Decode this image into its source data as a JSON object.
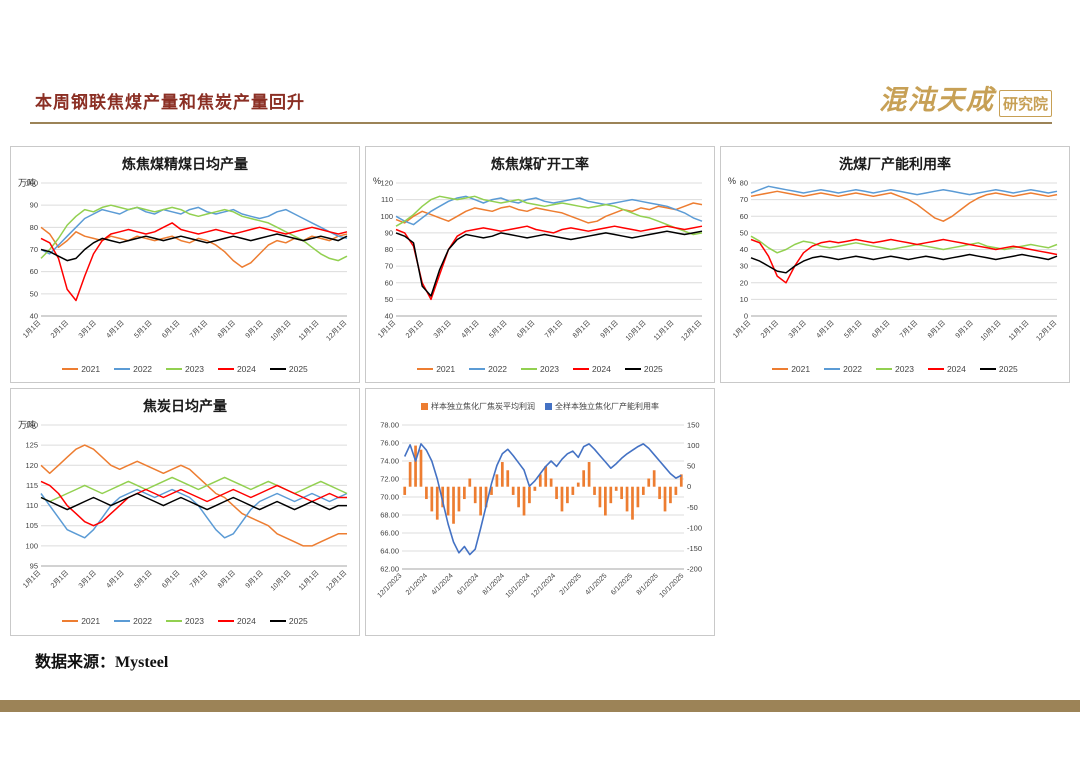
{
  "header": {
    "title": "本周钢联焦煤产量和焦炭产量回升",
    "logo_main": "混沌天成",
    "logo_seal": "研究院"
  },
  "footer": {
    "source_label": "数据来源：",
    "source_value": "Mysteel"
  },
  "colors": {
    "accent_gold": "#9c8357",
    "logo_gold": "#c7a055",
    "title_maroon": "#8b2f24",
    "gridline": "#dcdcdc",
    "s2021": "#ED7D31",
    "s2022": "#5B9BD5",
    "s2023": "#92D050",
    "s2024": "#FF0000",
    "s2025": "#000000",
    "combo_bar": "#ED7D31",
    "combo_line": "#4472C4"
  },
  "chart_data": [
    {
      "type": "line",
      "title": "炼焦煤精煤日均产量",
      "unit": "万吨",
      "ylim": [
        40,
        100
      ],
      "yticks": [
        40,
        50,
        60,
        70,
        80,
        90,
        100
      ],
      "grid": true,
      "legend_position": "bottom",
      "categories": [
        "1月1日",
        "2月1日",
        "3月1日",
        "4月1日",
        "5月1日",
        "6月1日",
        "7月1日",
        "8月1日",
        "9月1日",
        "10月1日",
        "11月1日",
        "12月1日"
      ],
      "series": [
        {
          "name": "2021",
          "color": "#ED7D31",
          "values": [
            80,
            77,
            71,
            74,
            78,
            76,
            75,
            74,
            76,
            75,
            74,
            76,
            75,
            74,
            75,
            76,
            74,
            73,
            75,
            74,
            72,
            69,
            65,
            62,
            64,
            68,
            72,
            74,
            73,
            75,
            74,
            76,
            75,
            74,
            76,
            77
          ]
        },
        {
          "name": "2022",
          "color": "#5B9BD5",
          "values": [
            70,
            68,
            72,
            76,
            80,
            84,
            86,
            88,
            87,
            86,
            88,
            89,
            87,
            86,
            88,
            87,
            86,
            88,
            89,
            87,
            86,
            87,
            88,
            86,
            85,
            84,
            85,
            87,
            88,
            86,
            84,
            82,
            80,
            78,
            76,
            75
          ]
        },
        {
          "name": "2023",
          "color": "#92D050",
          "values": [
            66,
            70,
            75,
            81,
            85,
            88,
            87,
            89,
            90,
            89,
            88,
            89,
            88,
            87,
            88,
            89,
            88,
            86,
            85,
            86,
            87,
            88,
            87,
            85,
            84,
            83,
            82,
            80,
            78,
            76,
            74,
            71,
            68,
            66,
            65,
            67
          ]
        },
        {
          "name": "2024",
          "color": "#FF0000",
          "values": [
            75,
            73,
            66,
            52,
            47,
            58,
            68,
            74,
            77,
            78,
            79,
            78,
            77,
            78,
            80,
            82,
            79,
            78,
            77,
            78,
            79,
            78,
            77,
            78,
            79,
            80,
            79,
            78,
            77,
            78,
            79,
            80,
            79,
            78,
            77,
            78
          ]
        },
        {
          "name": "2025",
          "color": "#000000",
          "values": [
            70,
            69,
            67,
            65,
            66,
            70,
            73,
            75,
            74,
            73,
            74,
            75,
            76,
            75,
            74,
            75,
            76,
            75,
            74,
            73,
            74,
            75,
            76,
            75,
            74,
            75,
            76,
            77,
            76,
            75,
            74,
            75,
            76,
            75,
            74,
            76
          ]
        }
      ]
    },
    {
      "type": "line",
      "title": "炼焦煤矿开工率",
      "unit": "%",
      "ylim": [
        40,
        120
      ],
      "yticks": [
        40,
        50,
        60,
        70,
        80,
        90,
        100,
        110,
        120
      ],
      "grid": true,
      "legend_position": "bottom",
      "categories": [
        "1月1日",
        "2月1日",
        "3月1日",
        "4月1日",
        "5月1日",
        "6月1日",
        "7月1日",
        "8月1日",
        "9月1日",
        "10月1日",
        "11月1日",
        "12月1日"
      ],
      "series": [
        {
          "name": "2021",
          "color": "#ED7D31",
          "values": [
            98,
            96,
            100,
            103,
            101,
            99,
            97,
            100,
            103,
            105,
            104,
            103,
            105,
            106,
            104,
            103,
            105,
            104,
            103,
            102,
            100,
            98,
            96,
            97,
            100,
            102,
            104,
            103,
            105,
            104,
            106,
            105,
            104,
            106,
            108,
            107
          ]
        },
        {
          "name": "2022",
          "color": "#5B9BD5",
          "values": [
            100,
            97,
            95,
            99,
            103,
            106,
            109,
            111,
            112,
            110,
            108,
            110,
            111,
            109,
            108,
            110,
            111,
            109,
            108,
            109,
            110,
            111,
            109,
            108,
            107,
            108,
            109,
            110,
            109,
            108,
            107,
            106,
            104,
            102,
            99,
            97
          ]
        },
        {
          "name": "2023",
          "color": "#92D050",
          "values": [
            94,
            97,
            101,
            106,
            110,
            112,
            111,
            110,
            111,
            112,
            110,
            109,
            108,
            109,
            110,
            108,
            107,
            106,
            107,
            108,
            107,
            106,
            105,
            106,
            107,
            106,
            104,
            102,
            100,
            99,
            97,
            95,
            93,
            91,
            89,
            90
          ]
        },
        {
          "name": "2024",
          "color": "#FF0000",
          "values": [
            92,
            90,
            82,
            60,
            50,
            65,
            80,
            88,
            91,
            92,
            93,
            92,
            91,
            92,
            93,
            94,
            92,
            91,
            90,
            92,
            93,
            92,
            91,
            92,
            93,
            94,
            93,
            92,
            91,
            92,
            93,
            94,
            93,
            92,
            93,
            94
          ]
        },
        {
          "name": "2025",
          "color": "#000000",
          "values": [
            90,
            88,
            84,
            58,
            52,
            68,
            80,
            86,
            89,
            88,
            87,
            88,
            90,
            89,
            88,
            87,
            88,
            89,
            88,
            87,
            86,
            87,
            88,
            89,
            90,
            89,
            88,
            87,
            88,
            89,
            90,
            91,
            90,
            89,
            90,
            91
          ]
        }
      ]
    },
    {
      "type": "line",
      "title": "洗煤厂产能利用率",
      "unit": "%",
      "ylim": [
        0,
        80
      ],
      "yticks": [
        0,
        10,
        20,
        30,
        40,
        50,
        60,
        70,
        80
      ],
      "grid": true,
      "legend_position": "bottom",
      "categories": [
        "1月1日",
        "2月1日",
        "3月1日",
        "4月1日",
        "5月1日",
        "6月1日",
        "7月1日",
        "8月1日",
        "9月1日",
        "10月1日",
        "11月1日",
        "12月1日"
      ],
      "series": [
        {
          "name": "2021",
          "color": "#ED7D31",
          "values": [
            72,
            73,
            74,
            75,
            74,
            73,
            72,
            73,
            74,
            73,
            72,
            73,
            74,
            73,
            72,
            73,
            74,
            72,
            70,
            67,
            63,
            59,
            57,
            60,
            64,
            68,
            71,
            73,
            74,
            73,
            72,
            73,
            74,
            73,
            72,
            73
          ]
        },
        {
          "name": "2022",
          "color": "#5B9BD5",
          "values": [
            74,
            76,
            78,
            77,
            76,
            75,
            74,
            75,
            76,
            75,
            74,
            75,
            76,
            75,
            74,
            75,
            76,
            75,
            74,
            73,
            74,
            75,
            76,
            75,
            74,
            73,
            74,
            75,
            76,
            75,
            74,
            75,
            76,
            75,
            74,
            75
          ]
        },
        {
          "name": "2023",
          "color": "#92D050",
          "values": [
            48,
            45,
            41,
            38,
            40,
            43,
            45,
            44,
            42,
            41,
            42,
            43,
            44,
            43,
            42,
            41,
            40,
            41,
            42,
            43,
            42,
            41,
            40,
            41,
            42,
            43,
            44,
            42,
            41,
            40,
            41,
            42,
            43,
            42,
            41,
            43
          ]
        },
        {
          "name": "2024",
          "color": "#FF0000",
          "values": [
            46,
            44,
            36,
            24,
            20,
            30,
            38,
            42,
            44,
            45,
            44,
            45,
            46,
            45,
            44,
            45,
            46,
            45,
            44,
            43,
            44,
            45,
            46,
            45,
            44,
            43,
            42,
            41,
            40,
            41,
            42,
            41,
            40,
            39,
            38,
            37
          ]
        },
        {
          "name": "2025",
          "color": "#000000",
          "values": [
            35,
            33,
            30,
            27,
            26,
            30,
            33,
            35,
            36,
            35,
            34,
            35,
            36,
            35,
            34,
            35,
            36,
            35,
            34,
            35,
            36,
            35,
            34,
            35,
            36,
            37,
            36,
            35,
            34,
            35,
            36,
            37,
            36,
            35,
            34,
            36
          ]
        }
      ]
    },
    {
      "type": "line",
      "title": "焦炭日均产量",
      "unit": "万吨",
      "ylim": [
        95,
        130
      ],
      "yticks": [
        95,
        100,
        105,
        110,
        115,
        120,
        125,
        130
      ],
      "grid": true,
      "legend_position": "bottom",
      "categories": [
        "1月1日",
        "2月1日",
        "3月1日",
        "4月1日",
        "5月1日",
        "6月1日",
        "7月1日",
        "8月1日",
        "9月1日",
        "10月1日",
        "11月1日",
        "12月1日"
      ],
      "series": [
        {
          "name": "2021",
          "color": "#ED7D31",
          "values": [
            120,
            118,
            120,
            122,
            124,
            125,
            124,
            122,
            120,
            119,
            120,
            121,
            120,
            119,
            118,
            119,
            120,
            119,
            117,
            115,
            113,
            112,
            110,
            108,
            107,
            106,
            105,
            103,
            102,
            101,
            100,
            100,
            101,
            102,
            103,
            103
          ]
        },
        {
          "name": "2022",
          "color": "#5B9BD5",
          "values": [
            113,
            110,
            107,
            104,
            103,
            102,
            104,
            107,
            110,
            112,
            113,
            114,
            113,
            112,
            113,
            114,
            113,
            112,
            110,
            107,
            104,
            102,
            103,
            106,
            109,
            111,
            112,
            113,
            112,
            111,
            112,
            113,
            112,
            111,
            112,
            113
          ]
        },
        {
          "name": "2023",
          "color": "#92D050",
          "values": [
            112,
            111,
            112,
            113,
            114,
            115,
            114,
            113,
            114,
            115,
            116,
            115,
            114,
            115,
            116,
            117,
            116,
            115,
            114,
            115,
            116,
            117,
            116,
            115,
            114,
            115,
            116,
            115,
            114,
            113,
            114,
            115,
            116,
            115,
            114,
            113
          ]
        },
        {
          "name": "2024",
          "color": "#FF0000",
          "values": [
            116,
            115,
            113,
            110,
            108,
            106,
            105,
            106,
            108,
            110,
            112,
            113,
            114,
            113,
            112,
            113,
            114,
            113,
            112,
            111,
            112,
            113,
            114,
            113,
            112,
            113,
            114,
            115,
            114,
            113,
            112,
            111,
            112,
            113,
            112,
            112
          ]
        },
        {
          "name": "2025",
          "color": "#000000",
          "values": [
            112,
            111,
            110,
            109,
            110,
            111,
            112,
            111,
            110,
            111,
            112,
            113,
            112,
            111,
            110,
            111,
            112,
            111,
            110,
            109,
            110,
            111,
            112,
            111,
            110,
            109,
            110,
            111,
            110,
            109,
            110,
            111,
            110,
            109,
            110,
            110
          ]
        }
      ]
    },
    {
      "type": "combo",
      "title": "",
      "legend_position": "top",
      "left_axis": {
        "lim": [
          62,
          78
        ],
        "ticks": [
          62,
          64,
          66,
          68,
          70,
          72,
          74,
          76,
          78
        ],
        "format": "2dp"
      },
      "right_axis": {
        "lim": [
          -200,
          150
        ],
        "ticks": [
          -200,
          -150,
          -100,
          -50,
          0,
          50,
          100,
          150
        ]
      },
      "x_labels": [
        "12/1/2023",
        "2/1/2024",
        "4/1/2024",
        "6/1/2024",
        "8/1/2024",
        "10/1/2024",
        "12/1/2024",
        "2/1/2025",
        "4/1/2025",
        "6/1/2025",
        "8/1/2025",
        "10/1/2025"
      ],
      "bar_series": {
        "name": "样本独立焦化厂焦炭平均利润",
        "color": "#ED7D31",
        "axis": "right",
        "values": [
          -20,
          60,
          100,
          90,
          -30,
          -60,
          -80,
          -50,
          -70,
          -90,
          -60,
          -30,
          20,
          -40,
          -70,
          -50,
          -20,
          30,
          60,
          40,
          -20,
          -50,
          -70,
          -40,
          -10,
          30,
          50,
          20,
          -30,
          -60,
          -40,
          -20,
          10,
          40,
          60,
          -20,
          -50,
          -70,
          -40,
          -10,
          -30,
          -60,
          -80,
          -50,
          -20,
          20,
          40,
          -30,
          -60,
          -40,
          -20,
          30
        ]
      },
      "line_series": {
        "name": "全样本独立焦化厂产能利用率",
        "color": "#4472C4",
        "axis": "left",
        "values": [
          74.5,
          75.8,
          74.0,
          75.9,
          75.2,
          74.0,
          72.0,
          69.5,
          67.0,
          65.0,
          63.8,
          64.5,
          63.6,
          64.2,
          66.5,
          69.0,
          71.5,
          73.5,
          74.8,
          75.3,
          74.6,
          73.8,
          73.0,
          71.2,
          71.8,
          72.6,
          73.4,
          74.0,
          73.4,
          74.2,
          74.8,
          75.1,
          74.4,
          75.6,
          75.9,
          75.3,
          74.6,
          73.9,
          73.2,
          73.7,
          74.3,
          74.8,
          75.2,
          75.6,
          75.9,
          75.4,
          74.7,
          74.0,
          73.3,
          72.6,
          72.1,
          72.4
        ]
      }
    }
  ]
}
